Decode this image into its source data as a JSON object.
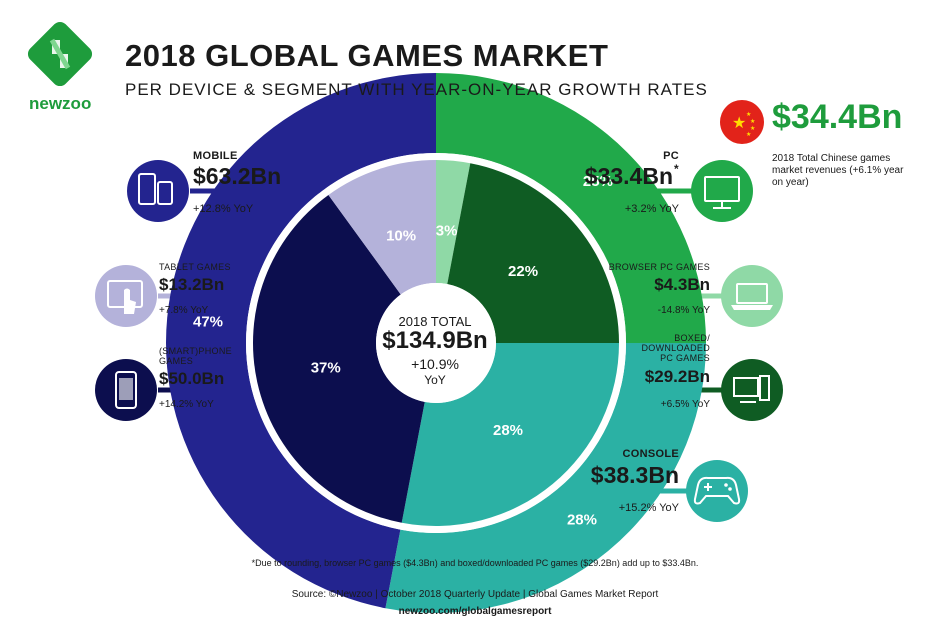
{
  "brand": {
    "name": "newzoo"
  },
  "header": {
    "title": "2018 GLOBAL GAMES MARKET",
    "subtitle": "PER DEVICE & SEGMENT WITH YEAR-ON-YEAR GROWTH RATES"
  },
  "china": {
    "value": "$34.4Bn",
    "caption": "2018 Total Chinese games market revenues (+6.1% year on year)"
  },
  "total": {
    "label": "2018 TOTAL",
    "value": "$134.9Bn",
    "yoy_line1": "+10.9%",
    "yoy_line2": "YoY"
  },
  "segments": {
    "mobile": {
      "name": "MOBILE",
      "value": "$63.2Bn",
      "yoy": "+12.8% YoY"
    },
    "tablet": {
      "name": "TABLET GAMES",
      "value": "$13.2Bn",
      "yoy": "+7.8% YoY"
    },
    "phone": {
      "name_line1": "(SMART)PHONE",
      "name_line2": "GAMES",
      "value": "$50.0Bn",
      "yoy": "+14.2% YoY"
    },
    "pc": {
      "name": "PC",
      "value": "$33.4Bn",
      "asterisk": "*",
      "yoy": "+3.2% YoY"
    },
    "browser": {
      "name": "BROWSER PC GAMES",
      "value": "$4.3Bn",
      "yoy": "-14.8% YoY"
    },
    "boxed": {
      "name_line1": "BOXED/",
      "name_line2": "DOWNLOADED",
      "name_line3": "PC GAMES",
      "value": "$29.2Bn",
      "yoy": "+6.5% YoY"
    },
    "console": {
      "name": "CONSOLE",
      "value": "$38.3Bn",
      "yoy": "+15.2% YoY"
    }
  },
  "footer": {
    "footnote": "*Due to rounding, browser PC games ($4.3Bn) and boxed/downloaded PC games ($29.2Bn) add up to $33.4Bn.",
    "source": "Source: ©Newzoo | October 2018 Quarterly Update | Global Games Market Report",
    "url": "newzoo.com/globalgamesreport"
  },
  "icons": {
    "mobile": "mobile-devices-icon",
    "tablet": "tablet-touch-icon",
    "phone": "smartphone-icon",
    "pc": "monitor-icon",
    "browser": "laptop-icon",
    "boxed": "desktop-tower-icon",
    "console": "gamepad-icon",
    "china": "china-flag-icon"
  },
  "colors": {
    "mobile": "#23248f",
    "tablet": "#b4b2da",
    "phone": "#0c0e4e",
    "pc": "#21a94a",
    "browser": "#8fd9a6",
    "boxed": "#0f5c23",
    "console": "#2bb1a4",
    "brand_green": "#1e9c3c",
    "china_red": "#e2231a"
  },
  "chart_data": {
    "type": "pie",
    "title": "2018 GLOBAL GAMES MARKET",
    "outer_ring": {
      "categories": [
        "PC",
        "CONSOLE",
        "MOBILE"
      ],
      "values": [
        25,
        28,
        47
      ],
      "labels": [
        "25%",
        "28%",
        "47%"
      ]
    },
    "inner_ring": {
      "categories": [
        "BROWSER PC GAMES",
        "BOXED/DOWNLOADED PC GAMES",
        "CONSOLE",
        "(SMART)PHONE GAMES",
        "TABLET GAMES"
      ],
      "values": [
        3,
        22,
        28,
        37,
        10
      ],
      "labels": [
        "3%",
        "22%",
        "28%",
        "37%",
        "10%"
      ]
    }
  }
}
